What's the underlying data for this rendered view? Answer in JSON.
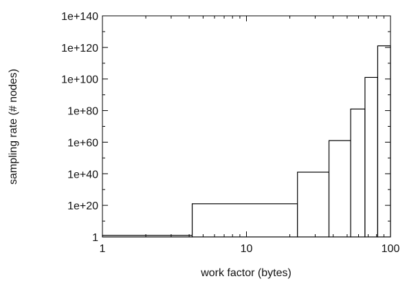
{
  "chart_data": {
    "type": "bar",
    "title": "",
    "xlabel": "work factor (bytes)",
    "ylabel": "sampling rate (# nodes)",
    "x_scale": "log",
    "x_range": [
      1,
      100
    ],
    "x_ticks": [
      {
        "value": 1,
        "label": "1"
      },
      {
        "value": 10,
        "label": "10"
      },
      {
        "value": 100,
        "label": "100"
      }
    ],
    "y_scale": "log",
    "y_range": [
      1,
      1e+140
    ],
    "y_ticks": [
      {
        "value": 1,
        "label": "1"
      },
      {
        "value": 1e+20,
        "label": "1e+20"
      },
      {
        "value": 1e+40,
        "label": "1e+40"
      },
      {
        "value": 1e+60,
        "label": "1e+60"
      },
      {
        "value": 1e+80,
        "label": "1e+80"
      },
      {
        "value": 1e+100,
        "label": "1e+100"
      },
      {
        "value": 1e+120,
        "label": "1e+120"
      },
      {
        "value": 1e+140,
        "label": "1e+140"
      }
    ],
    "grid": false,
    "legend": false,
    "bars": [
      {
        "x_start": 1,
        "x_end": 4.2,
        "value": 10.0
      },
      {
        "x_start": 4.2,
        "x_end": 22.6,
        "value": 1e+21
      },
      {
        "x_start": 22.6,
        "x_end": 37.4,
        "value": 1e+41
      },
      {
        "x_start": 37.4,
        "x_end": 52.9,
        "value": 1e+61
      },
      {
        "x_start": 52.9,
        "x_end": 66.5,
        "value": 1e+81
      },
      {
        "x_start": 66.5,
        "x_end": 81.5,
        "value": 1e+101
      },
      {
        "x_start": 81.5,
        "x_end": 100,
        "value": 1e+121
      }
    ],
    "colors": {
      "bar_fill": "#ffffff",
      "bar_stroke": "#000000",
      "axis": "#000000"
    }
  }
}
